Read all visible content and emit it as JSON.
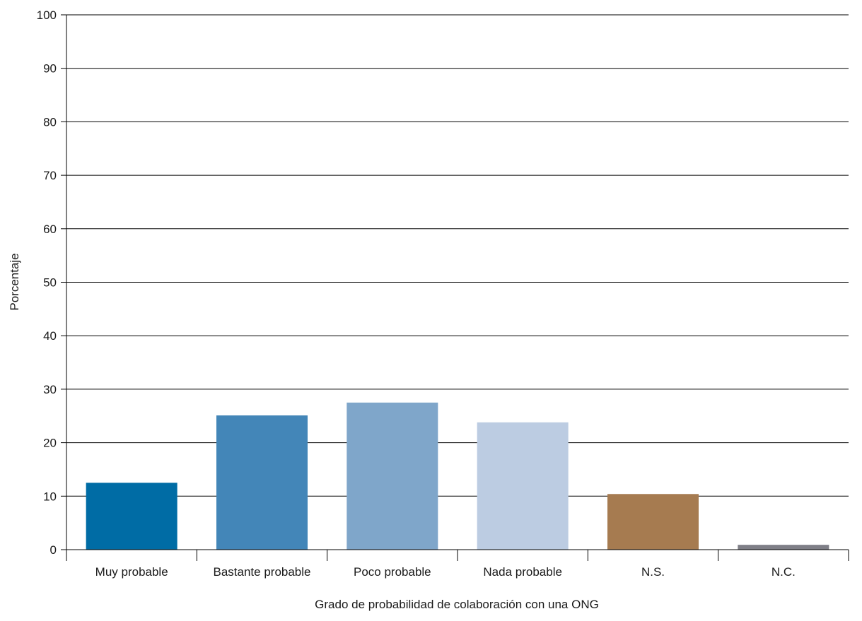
{
  "chart_data": {
    "type": "bar",
    "categories": [
      "Muy probable",
      "Bastante probable",
      "Poco probable",
      "Nada probable",
      "N.S.",
      "N.C."
    ],
    "values": [
      12.5,
      25.1,
      27.5,
      23.8,
      10.4,
      0.9
    ],
    "colors": [
      "#006ca5",
      "#4386b8",
      "#7fa6ca",
      "#bccce2",
      "#a67b50",
      "#7f7f87"
    ],
    "title": "",
    "xlabel": "Grado de probabilidad de colaboración con una ONG",
    "ylabel": "Porcentaje",
    "ylim": [
      0,
      100
    ],
    "yticks": [
      0,
      10,
      20,
      30,
      40,
      50,
      60,
      70,
      80,
      90,
      100
    ],
    "grid": true
  }
}
